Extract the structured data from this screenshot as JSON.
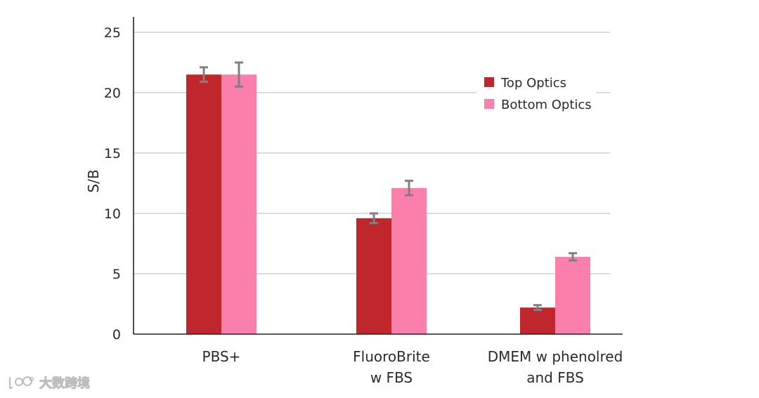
{
  "chart_data": {
    "type": "bar",
    "title": "",
    "xlabel": "",
    "ylabel": "S/B",
    "ylim": [
      0,
      25
    ],
    "yticks": [
      0,
      5,
      10,
      15,
      20,
      25
    ],
    "grid": true,
    "legend_position": "top-right",
    "categories": [
      [
        "PBS+"
      ],
      [
        "FluoroBrite",
        "w FBS"
      ],
      [
        "DMEM w phenolred",
        "and FBS"
      ]
    ],
    "series": [
      {
        "name": "Top Optics",
        "color": "#c0272d",
        "values": [
          21.5,
          9.6,
          2.2
        ],
        "errors": [
          0.6,
          0.4,
          0.2
        ]
      },
      {
        "name": "Bottom Optics",
        "color": "#fb7fab",
        "values": [
          21.5,
          12.1,
          6.4
        ],
        "errors": [
          1.0,
          0.6,
          0.3
        ]
      }
    ]
  },
  "watermark": {
    "text": "大数跨境"
  }
}
